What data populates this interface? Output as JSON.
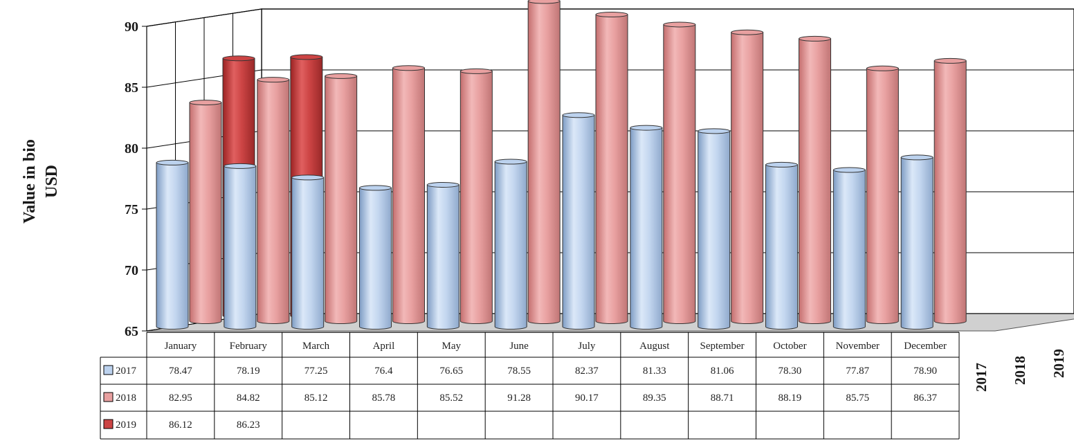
{
  "chart_data": {
    "type": "bar",
    "style": "3d-clustered-columns-with-data-table",
    "title": "",
    "ylabel": "Value in bio USD",
    "ylim": [
      65,
      90
    ],
    "yticks": [
      65,
      70,
      75,
      80,
      85,
      90
    ],
    "grid": true,
    "categories": [
      "January",
      "February",
      "March",
      "April",
      "May",
      "June",
      "July",
      "August",
      "September",
      "October",
      "November",
      "December"
    ],
    "depth_labels": [
      "2017",
      "2018",
      "2019"
    ],
    "series": [
      {
        "name": "2017",
        "color": "#bcd2ee",
        "values": [
          78.47,
          78.19,
          77.25,
          76.4,
          76.65,
          78.55,
          82.37,
          81.33,
          81.06,
          78.3,
          77.87,
          78.9
        ],
        "labels": [
          "78.47",
          "78.19",
          "77.25",
          "76.4",
          "76.65",
          "78.55",
          "82.37",
          "81.33",
          "81.06",
          "78.30",
          "77.87",
          "78.90"
        ]
      },
      {
        "name": "2018",
        "color": "#e8a0a0",
        "values": [
          82.95,
          84.82,
          85.12,
          85.78,
          85.52,
          91.28,
          90.17,
          89.35,
          88.71,
          88.19,
          85.75,
          86.37
        ],
        "labels": [
          "82.95",
          "84.82",
          "85.12",
          "85.78",
          "85.52",
          "91.28",
          "90.17",
          "89.35",
          "88.71",
          "88.19",
          "85.75",
          "86.37"
        ]
      },
      {
        "name": "2019",
        "color": "#cc4444",
        "values": [
          86.12,
          86.23,
          null,
          null,
          null,
          null,
          null,
          null,
          null,
          null,
          null,
          null
        ],
        "labels": [
          "86.12",
          "86.23",
          "",
          "",
          "",
          "",
          "",
          "",
          "",
          "",
          "",
          ""
        ]
      }
    ]
  }
}
